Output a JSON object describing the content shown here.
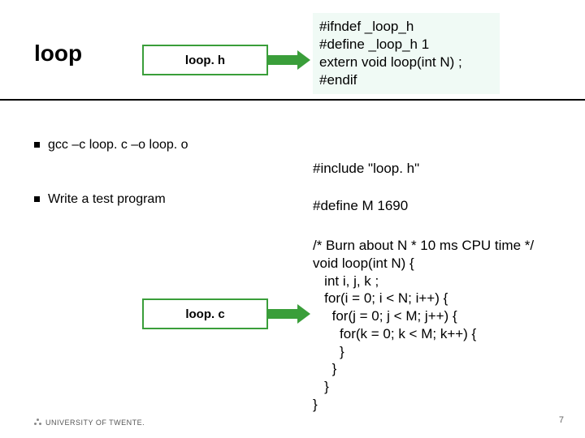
{
  "title": "loop",
  "header_box": {
    "label": "loop. h"
  },
  "header_code": {
    "lines": [
      "#ifndef _loop_h",
      "#define _loop_h 1",
      "extern void loop(int N) ;",
      "#endif"
    ]
  },
  "bullets": [
    "gcc –c loop. c –o loop. o",
    "Write a test program"
  ],
  "include_line": "#include \"loop. h\"",
  "define_line": "#define M 1690",
  "body_code": "/* Burn about N * 10 ms CPU time */\nvoid loop(int N) {\n   int i, j, k ;\n   for(i = 0; i < N; i++) {\n     for(j = 0; j < M; j++) {\n       for(k = 0; k < M; k++) {\n       }\n     }\n   }\n}",
  "c_box": {
    "label": "loop. c"
  },
  "footer": "UNIVERSITY OF TWENTE.",
  "page_number": "7",
  "colors": {
    "accent_green": "#3a9e3a",
    "code_bg": "#f0faf5",
    "text": "#000000"
  }
}
